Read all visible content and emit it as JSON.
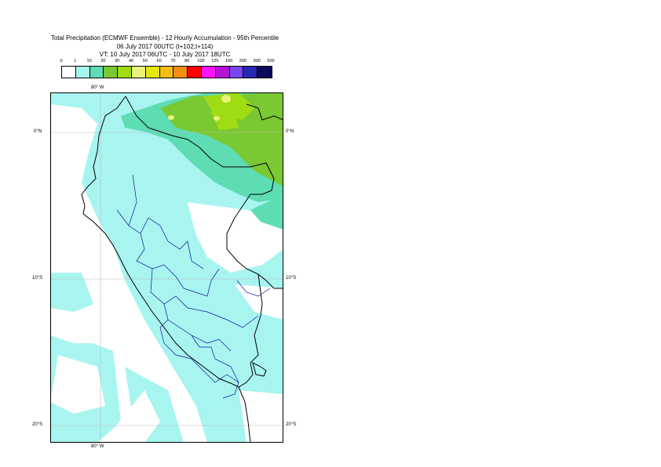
{
  "header": {
    "title_line1": "Total Precipitation (ECMWF Ensemble) - 12 Hourly Accumulation - 95th Percentile",
    "title_line2": "06 July 2017 00UTC (t+102,t+114)",
    "title_line3": "VT: 10 July 2017 06UTC - 10 July 2017 18UTC"
  },
  "legend": {
    "ticks": [
      "0",
      "1",
      "10",
      "20",
      "30",
      "40",
      "50",
      "60",
      "70",
      "80",
      "100",
      "125",
      "150",
      "200",
      "300",
      "500"
    ],
    "colors": [
      "#ffffff",
      "#a8f5f0",
      "#5edcb4",
      "#7ac832",
      "#a0dc14",
      "#e6f57a",
      "#e6e614",
      "#f5be14",
      "#f58c14",
      "#ff0000",
      "#ff14ff",
      "#b414d2",
      "#7846f0",
      "#2828b4",
      "#0a0a5a"
    ]
  },
  "map": {
    "lon_label_top": "80° W",
    "lon_label_bottom": "80° W",
    "lat_labels": [
      "0°N",
      "10°S",
      "20°S"
    ],
    "sea_color": "#ffffff",
    "light_precip_color": "#a8f5f0",
    "moderate_precip_color": "#5edcb4",
    "heavy_precip_color": "#7ac832",
    "very_heavy_precip_color": "#a0dc14",
    "peak_precip_color": "#e6f57a",
    "coast_color": "#000000",
    "region_border_color": "#1010a0"
  }
}
